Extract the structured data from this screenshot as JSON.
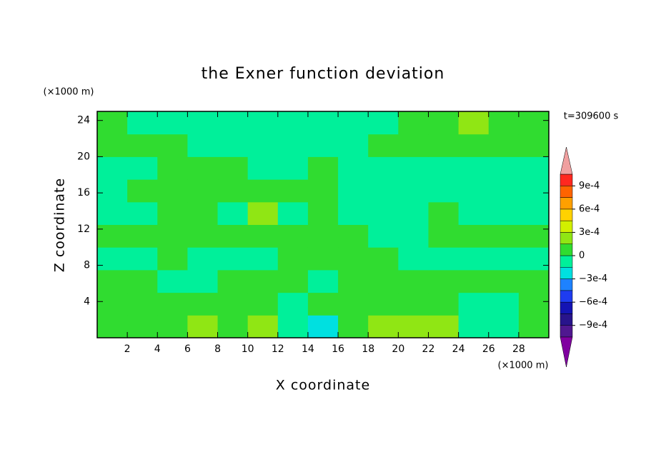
{
  "chart_data": {
    "type": "contour",
    "title": "the Exner function deviation",
    "xlabel": "X coordinate",
    "ylabel": "Z coordinate",
    "xunit": "(×1000 m)",
    "yunit": "(×1000 m)",
    "annotation": "t=309600 s",
    "xlim": [
      0,
      30
    ],
    "ylim": [
      0,
      25
    ],
    "xticks": [
      2,
      4,
      6,
      8,
      10,
      12,
      14,
      16,
      18,
      20,
      22,
      24,
      26,
      28
    ],
    "yticks": [
      4,
      8,
      12,
      16,
      20,
      24
    ],
    "x": [
      1,
      3,
      5,
      7,
      9,
      11,
      13,
      15,
      17,
      19,
      21,
      23,
      25,
      27,
      29
    ],
    "y": [
      1.25,
      3.75,
      6.25,
      8.75,
      11.25,
      13.75,
      16.25,
      18.75,
      21.25,
      23.75
    ],
    "z": [
      [
        0.0001,
        0.0001,
        0.0001,
        0.0002,
        0.0001,
        0.0002,
        -0.0001,
        -0.0002,
        0.0001,
        0.0002,
        0.0002,
        0.0002,
        -0.0001,
        -0.0001,
        0.0001
      ],
      [
        0.0001,
        0.0001,
        0.0001,
        0.0001,
        0.0001,
        0.0001,
        -0.0001,
        0.0001,
        0.0001,
        0.0001,
        0.0001,
        0.0001,
        -0.0001,
        -0.0001,
        0.0001
      ],
      [
        0.0001,
        0.0001,
        -0.0001,
        -0.0001,
        0.0001,
        0.0001,
        0.0001,
        -0.0001,
        0.0001,
        0.0001,
        0.0001,
        0.0001,
        0.0001,
        0.0001,
        0.0001
      ],
      [
        -0.0001,
        -0.0001,
        0.0001,
        -0.0001,
        -0.0001,
        -0.0001,
        0.0001,
        0.0001,
        0.0001,
        0.0001,
        -0.0001,
        -0.0001,
        -0.0001,
        -0.0001,
        -0.0001
      ],
      [
        0.0001,
        0.0001,
        0.0001,
        0.0001,
        0.0001,
        0.0001,
        0.0001,
        0.0001,
        0.0001,
        -0.0001,
        -0.0001,
        0.0001,
        0.0001,
        0.0001,
        0.0001
      ],
      [
        -0.0001,
        -0.0001,
        0.0001,
        0.0001,
        -0.0001,
        0.0002,
        -0.0001,
        0.0001,
        -0.0001,
        -0.0001,
        -0.0001,
        0.0001,
        -0.0001,
        -0.0001,
        -0.0001
      ],
      [
        -0.0001,
        0.0001,
        0.0001,
        0.0001,
        0.0001,
        0.0001,
        0.0001,
        0.0001,
        -0.0001,
        -0.0001,
        -0.0001,
        -0.0001,
        -0.0001,
        -0.0001,
        -0.0001
      ],
      [
        -0.0001,
        -0.0001,
        0.0001,
        0.0001,
        0.0001,
        -0.0001,
        -0.0001,
        0.0001,
        -0.0001,
        -0.0001,
        -0.0001,
        -0.0001,
        -0.0001,
        -0.0001,
        -0.0001
      ],
      [
        0.0001,
        0.0001,
        0.0001,
        -0.0001,
        -0.0001,
        -0.0001,
        -0.0001,
        -0.0001,
        -0.0001,
        0.0001,
        0.0001,
        0.0001,
        0.0001,
        0.0001,
        0.0001
      ],
      [
        0.0001,
        -0.0001,
        -0.0001,
        -0.0001,
        -0.0001,
        -0.0001,
        -0.0001,
        -0.0001,
        -0.0001,
        -0.0001,
        0.0001,
        0.0001,
        0.0002,
        0.0001,
        0.0001
      ]
    ],
    "levels": [
      -0.00105,
      -0.0009,
      -0.00075,
      -0.0006,
      -0.00045,
      -0.0003,
      -0.00015,
      0,
      0.00015,
      0.0003,
      0.00045,
      0.0006,
      0.00075,
      0.0009,
      0.00105
    ],
    "colors": [
      "#8000a0",
      "#501890",
      "#28148c",
      "#1414b4",
      "#1e3cf0",
      "#1e82ff",
      "#00e0e0",
      "#00f09a",
      "#30dc30",
      "#90e614",
      "#d2f000",
      "#ffd200",
      "#ffa000",
      "#ff6400",
      "#ff2820",
      "#f0a0a0"
    ],
    "cticks": [
      {
        "value": 0.0009,
        "label": "9e-4"
      },
      {
        "value": 0.0006,
        "label": "6e-4"
      },
      {
        "value": 0.0003,
        "label": "3e-4"
      },
      0,
      {
        "value": -0.0003,
        "label": "−3e-4"
      },
      {
        "value": -0.0006,
        "label": "−6e-4"
      },
      {
        "value": -0.0009,
        "label": "−9e-4"
      }
    ]
  }
}
